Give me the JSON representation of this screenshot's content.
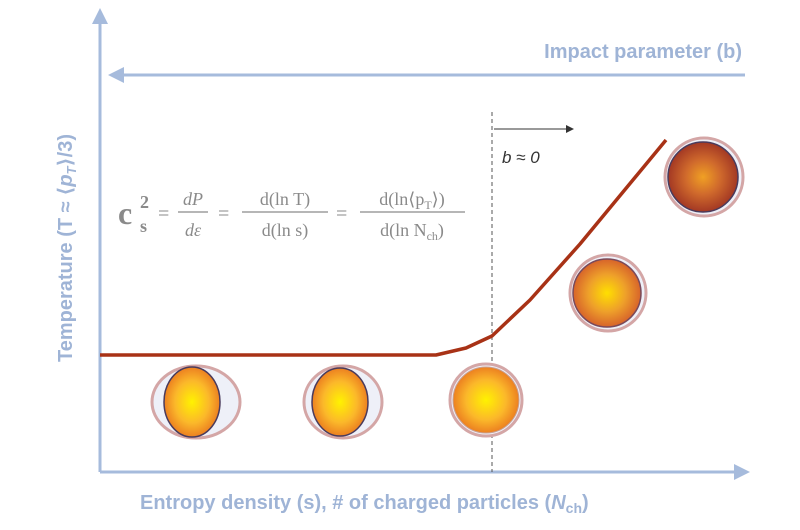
{
  "axes": {
    "y_label_main": "Temperature (T ≈ ⟨",
    "y_label_pt": "p",
    "y_label_sub": "T",
    "y_label_end": "⟩/3)",
    "x_label_main": "Entropy density (s), # of charged particles (",
    "x_label_n": "N",
    "x_label_sub": "ch",
    "x_label_end": ")",
    "top_label": "Impact parameter (b)"
  },
  "annotation": {
    "b_label": "b ≈ 0"
  },
  "equation": {
    "lhs_c": "c",
    "lhs_sup": "2",
    "lhs_sub": "s",
    "eq": "=",
    "f1_num": "dP",
    "f1_den": "dε",
    "f2_num": "d(ln T)",
    "f2_den": "d(ln s)",
    "f3_num": "d(ln⟨p",
    "f3_num_sub": "T",
    "f3_num_end": "⟩)",
    "f3_den": "d(ln N",
    "f3_den_sub": "ch",
    "f3_den_end": ")"
  },
  "colors": {
    "axis": "#a6bbdc",
    "curve": "#a83216",
    "ring": "#d4a6a6",
    "dashed": "#555555"
  }
}
